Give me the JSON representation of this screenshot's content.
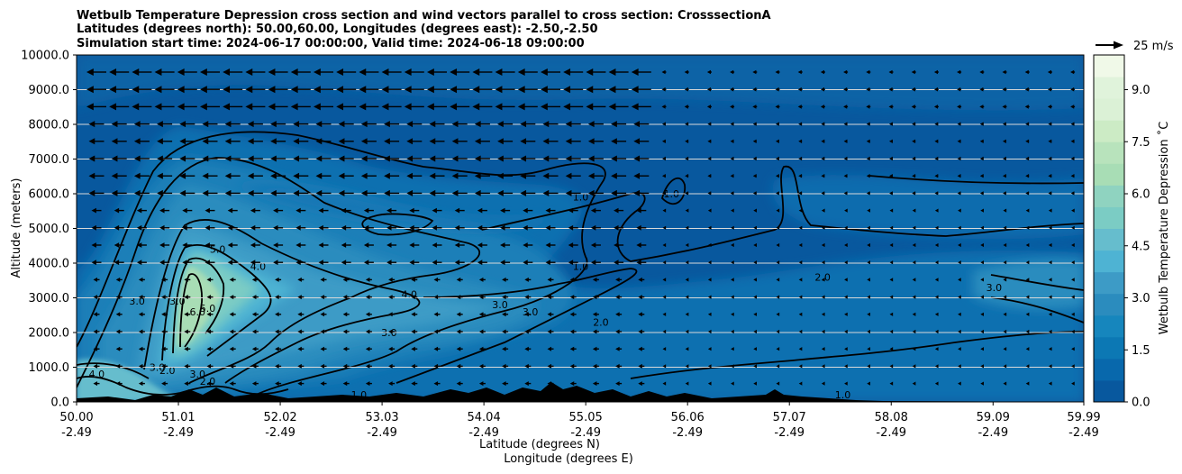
{
  "chart_data": {
    "type": "heatmap",
    "title_lines": [
      "Wetbulb Temperature Depression cross section and wind vectors parallel to cross section: CrosssectionA",
      "Latitudes (degrees north): 50.00,60.00, Longitudes (degrees east): -2.50,-2.50",
      "Simulation start time: 2024-06-17 00:00:00, Valid time: 2024-06-18 09:00:00"
    ],
    "xlabel_lines": [
      "Latitude (degrees N)",
      "Longitude (degrees E)"
    ],
    "ylabel": "Altitude (meters)",
    "x_ticks": [
      {
        "lat": "50.00",
        "lon": "-2.49"
      },
      {
        "lat": "51.01",
        "lon": "-2.49"
      },
      {
        "lat": "52.02",
        "lon": "-2.49"
      },
      {
        "lat": "53.03",
        "lon": "-2.49"
      },
      {
        "lat": "54.04",
        "lon": "-2.49"
      },
      {
        "lat": "55.05",
        "lon": "-2.49"
      },
      {
        "lat": "56.06",
        "lon": "-2.49"
      },
      {
        "lat": "57.07",
        "lon": "-2.49"
      },
      {
        "lat": "58.08",
        "lon": "-2.49"
      },
      {
        "lat": "59.09",
        "lon": "-2.49"
      },
      {
        "lat": "59.99",
        "lon": "-2.49"
      }
    ],
    "x_range": [
      50.0,
      59.99
    ],
    "y_ticks": [
      "0.0",
      "1000.0",
      "2000.0",
      "3000.0",
      "4000.0",
      "5000.0",
      "6000.0",
      "7000.0",
      "8000.0",
      "9000.0",
      "10000.0"
    ],
    "ylim": [
      0,
      10000
    ],
    "grid": "horizontal",
    "colorbar": {
      "label": "Wetbulb Temperature Depression ˚C",
      "ticks": [
        "0.0",
        "1.5",
        "3.0",
        "4.5",
        "6.0",
        "7.5",
        "9.0"
      ],
      "range": [
        0,
        10
      ],
      "colors": [
        "#08589e",
        "#0868ac",
        "#0c78b4",
        "#1686bd",
        "#2b8cbe",
        "#3d9bc6",
        "#4eb3d3",
        "#66bdcd",
        "#7bccc4",
        "#8fd3c0",
        "#a8ddb5",
        "#b8e3bc",
        "#ccebc5",
        "#dbf1d6",
        "#e0f3db",
        "#f0f9e8"
      ]
    },
    "wind_key": {
      "label": "25 m/s"
    },
    "contour_labels": [
      {
        "text": "1.0",
        "lat": 55.0,
        "alt": 5800
      },
      {
        "text": "1.0",
        "lat": 55.0,
        "alt": 3800
      },
      {
        "text": "1.0",
        "lat": 55.9,
        "alt": 5900
      },
      {
        "text": "5.0",
        "lat": 51.4,
        "alt": 4300
      },
      {
        "text": "4.0",
        "lat": 51.8,
        "alt": 3800
      },
      {
        "text": "4.0",
        "lat": 53.3,
        "alt": 3000
      },
      {
        "text": "3.0",
        "lat": 50.6,
        "alt": 2800
      },
      {
        "text": "3.0",
        "lat": 51.0,
        "alt": 2800
      },
      {
        "text": "6.0",
        "lat": 51.2,
        "alt": 2500
      },
      {
        "text": "5.0",
        "lat": 51.3,
        "alt": 2600
      },
      {
        "text": "3.0",
        "lat": 53.1,
        "alt": 1900
      },
      {
        "text": "3.0",
        "lat": 54.2,
        "alt": 2700
      },
      {
        "text": "3.0",
        "lat": 54.5,
        "alt": 2500
      },
      {
        "text": "2.0",
        "lat": 55.2,
        "alt": 2200
      },
      {
        "text": "2.0",
        "lat": 57.4,
        "alt": 3500
      },
      {
        "text": "3.0",
        "lat": 59.1,
        "alt": 3200
      },
      {
        "text": "3.0",
        "lat": 50.8,
        "alt": 900
      },
      {
        "text": "2.0",
        "lat": 50.9,
        "alt": 800
      },
      {
        "text": "4.0",
        "lat": 50.2,
        "alt": 700
      },
      {
        "text": "3.0",
        "lat": 51.2,
        "alt": 700
      },
      {
        "text": "2.0",
        "lat": 51.3,
        "alt": 500
      },
      {
        "text": "1.0",
        "lat": 52.8,
        "alt": 100
      },
      {
        "text": "1.0",
        "lat": 57.6,
        "alt": 100
      }
    ]
  }
}
